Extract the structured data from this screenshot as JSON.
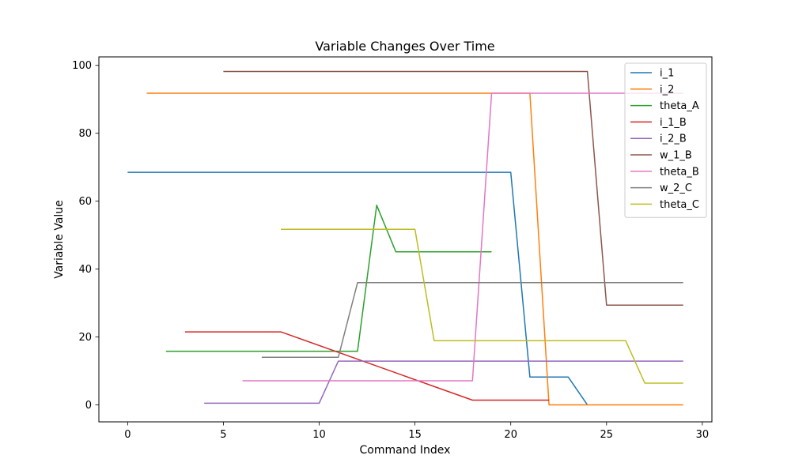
{
  "chart_data": {
    "type": "line",
    "title": "Variable Changes Over Time",
    "xlabel": "Command Index",
    "ylabel": "Variable Value",
    "xlim": [
      -1.5,
      30.5
    ],
    "ylim": [
      -5,
      102.5
    ],
    "xticks": [
      0,
      5,
      10,
      15,
      20,
      25,
      30
    ],
    "yticks": [
      0,
      20,
      40,
      60,
      80,
      100
    ],
    "grid": false,
    "legend_position": "upper right",
    "series": [
      {
        "name": "i_1",
        "color": "#1f77b4",
        "x": [
          0,
          20,
          21,
          23,
          24
        ],
        "y": [
          68.5,
          68.5,
          8.2,
          8.2,
          0
        ]
      },
      {
        "name": "i_2",
        "color": "#ff7f0e",
        "x": [
          1,
          21,
          22,
          29
        ],
        "y": [
          91.8,
          91.8,
          0,
          0
        ]
      },
      {
        "name": "theta_A",
        "color": "#2ca02c",
        "x": [
          2,
          12,
          13,
          14,
          19
        ],
        "y": [
          15.8,
          15.8,
          58.8,
          45.1,
          45.1
        ]
      },
      {
        "name": "i_1_B",
        "color": "#d62728",
        "x": [
          3,
          8,
          18,
          22
        ],
        "y": [
          21.5,
          21.5,
          1.4,
          1.4
        ]
      },
      {
        "name": "i_2_B",
        "color": "#9467bd",
        "x": [
          4,
          10,
          11,
          29
        ],
        "y": [
          0.5,
          0.5,
          12.9,
          12.9
        ]
      },
      {
        "name": "w_1_B",
        "color": "#8c564b",
        "x": [
          5,
          24,
          25,
          29
        ],
        "y": [
          98.2,
          98.2,
          29.4,
          29.4
        ]
      },
      {
        "name": "theta_B",
        "color": "#e377c2",
        "x": [
          6,
          18,
          19,
          29
        ],
        "y": [
          7.1,
          7.1,
          91.8,
          91.8
        ]
      },
      {
        "name": "w_2_C",
        "color": "#7f7f7f",
        "x": [
          7,
          11,
          12,
          29
        ],
        "y": [
          14.0,
          14.0,
          36.0,
          36.0
        ]
      },
      {
        "name": "theta_C",
        "color": "#bcbd22",
        "x": [
          8,
          15,
          16,
          26,
          27,
          29
        ],
        "y": [
          51.7,
          51.7,
          18.9,
          18.9,
          6.4,
          6.4
        ]
      }
    ]
  }
}
